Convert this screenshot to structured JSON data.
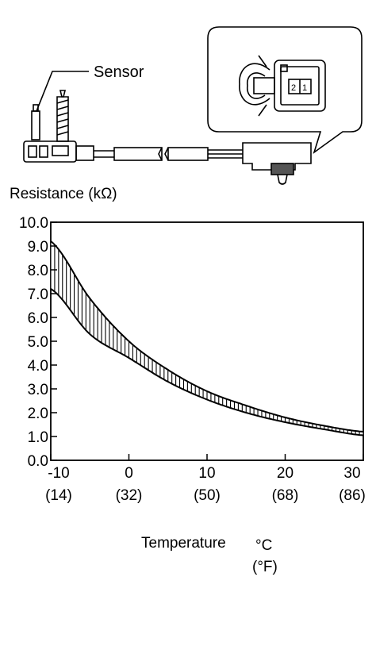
{
  "diagram": {
    "sensor_label": "Sensor",
    "connector_pins": [
      "2",
      "1"
    ]
  },
  "chart_data": {
    "type": "area",
    "title": "",
    "ylabel": "Resistance (kΩ)",
    "xlabel": "Temperature",
    "xunit_c": "°C",
    "xunit_f": "(°F)",
    "xlim": [
      -10,
      30
    ],
    "ylim": [
      0,
      10
    ],
    "grid": false,
    "legend": "none",
    "x_ticks": [
      -10,
      0,
      10,
      20,
      30
    ],
    "x_tick_labels": [
      "-10",
      "0",
      "10",
      "20",
      "30"
    ],
    "x_tick_labels_f": [
      "(14)",
      "(32)",
      "(50)",
      "(68)",
      "(86)"
    ],
    "y_ticks": [
      0,
      1,
      2,
      3,
      4,
      5,
      6,
      7,
      8,
      9,
      10
    ],
    "y_tick_labels": [
      "0.0",
      "1.0",
      "2.0",
      "3.0",
      "4.0",
      "5.0",
      "6.0",
      "7.0",
      "8.0",
      "9.0",
      "10.0"
    ],
    "series": [
      {
        "x": [
          -10,
          -5,
          0,
          5,
          10,
          15,
          20,
          25,
          30
        ],
        "y_upper": [
          9.2,
          6.8,
          5.0,
          3.8,
          2.9,
          2.3,
          1.8,
          1.45,
          1.2
        ],
        "y_lower": [
          7.2,
          5.3,
          4.3,
          3.3,
          2.55,
          2.0,
          1.6,
          1.3,
          1.05
        ]
      }
    ]
  }
}
